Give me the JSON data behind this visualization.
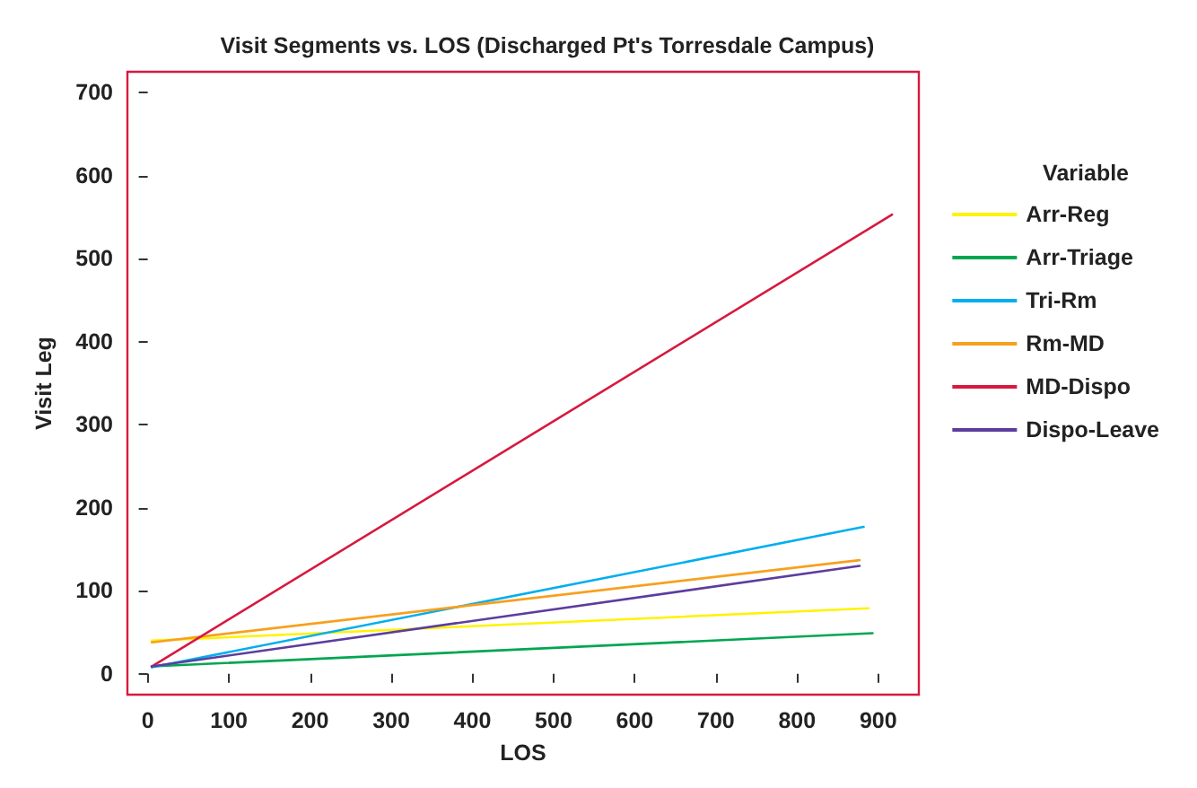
{
  "chart_data": {
    "type": "line",
    "title": "Visit Segments vs. LOS (Discharged Pt's Torresdale Campus)",
    "xlabel": "LOS",
    "ylabel": "Visit Leg",
    "legend_title": "Variable",
    "legend": "right",
    "grid": false,
    "marker": "none",
    "line_style": "solid",
    "xlim": [
      -25,
      950
    ],
    "xticks": [
      0,
      100,
      200,
      300,
      400,
      500,
      600,
      700,
      800,
      900
    ],
    "ylim": [
      -25,
      725
    ],
    "yticks": [
      0,
      100,
      200,
      300,
      400,
      500,
      600,
      700
    ],
    "series": [
      {
        "name": "Arr-Reg",
        "color": "#fff200",
        "x": [
          5,
          888
        ],
        "values": [
          40,
          79
        ]
      },
      {
        "name": "Arr-Triage",
        "color": "#00a650",
        "x": [
          5,
          893
        ],
        "values": [
          9,
          49
        ]
      },
      {
        "name": "Tri-Rm",
        "color": "#00aeef",
        "x": [
          5,
          882
        ],
        "values": [
          8,
          177
        ]
      },
      {
        "name": "Rm-MD",
        "color": "#f7a01e",
        "x": [
          5,
          877
        ],
        "values": [
          38,
          137
        ]
      },
      {
        "name": "MD-Dispo",
        "color": "#d7193f",
        "x": [
          5,
          917
        ],
        "values": [
          9,
          553
        ]
      },
      {
        "name": "Dispo-Leave",
        "color": "#5c3d9e",
        "x": [
          5,
          877
        ],
        "values": [
          9,
          130
        ]
      }
    ]
  }
}
